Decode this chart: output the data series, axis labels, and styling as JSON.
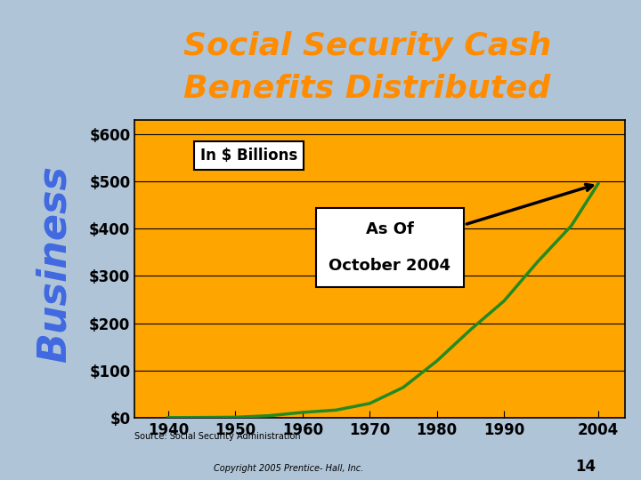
{
  "title_line1": "Social Security Cash",
  "title_line2": "Benefits Distributed",
  "title_color": "#FF8C00",
  "title_bg_color": "#4169E1",
  "chart_bg_color": "#FFA500",
  "slide_bg_color": "#B0C4D8",
  "sidebar_text": "Business",
  "years": [
    1940,
    1945,
    1950,
    1955,
    1960,
    1965,
    1970,
    1975,
    1980,
    1985,
    1990,
    1995,
    2000,
    2004
  ],
  "values": [
    0.0,
    0.3,
    0.8,
    4.0,
    11.0,
    16.0,
    30.0,
    64.0,
    120.0,
    186.0,
    247.0,
    330.0,
    406.0,
    495.0
  ],
  "line_color": "#228B22",
  "line_width": 2.5,
  "yticks": [
    0,
    100,
    200,
    300,
    400,
    500,
    600
  ],
  "ytick_labels": [
    "$0",
    "$100",
    "$200",
    "$300",
    "$400",
    "$500",
    "$600"
  ],
  "xticks": [
    1940,
    1950,
    1960,
    1970,
    1980,
    1990,
    2004
  ],
  "ylim": [
    0,
    630
  ],
  "xlim": [
    1935,
    2008
  ],
  "annotation_label": "In $ Billions",
  "annotation2_line1": "As Of",
  "annotation2_line2": "October 2004",
  "source_text": "Source: Social Security Administration",
  "copyright_text": "Copyright 2005 Prentice- Hall, Inc.",
  "page_number": "14",
  "grid_color": "#000000",
  "tick_label_fontsize": 12,
  "axis_label_color": "#000000"
}
